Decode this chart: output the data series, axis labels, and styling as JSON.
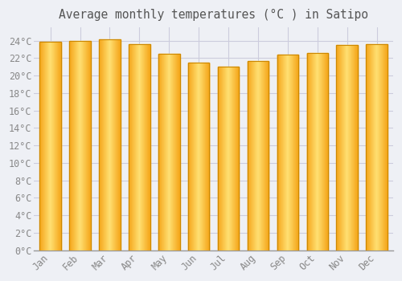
{
  "title": "Average monthly temperatures (°C ) in Satipo",
  "months": [
    "Jan",
    "Feb",
    "Mar",
    "Apr",
    "May",
    "Jun",
    "Jul",
    "Aug",
    "Sep",
    "Oct",
    "Nov",
    "Dec"
  ],
  "temperatures": [
    23.9,
    24.0,
    24.1,
    23.6,
    22.5,
    21.5,
    21.0,
    21.7,
    22.4,
    22.6,
    23.5,
    23.6
  ],
  "bar_color_center": "#FFD966",
  "bar_color_edge": "#F5A623",
  "bar_border_color": "#CC8800",
  "background_color": "#EEF0F5",
  "plot_bg_color": "#EEF0F5",
  "grid_color": "#CCCCDD",
  "text_color": "#888888",
  "title_color": "#555555",
  "ylim": [
    0,
    25.5
  ],
  "yticks": [
    0,
    2,
    4,
    6,
    8,
    10,
    12,
    14,
    16,
    18,
    20,
    22,
    24
  ],
  "title_fontsize": 10.5,
  "tick_fontsize": 8.5,
  "font_family": "monospace"
}
